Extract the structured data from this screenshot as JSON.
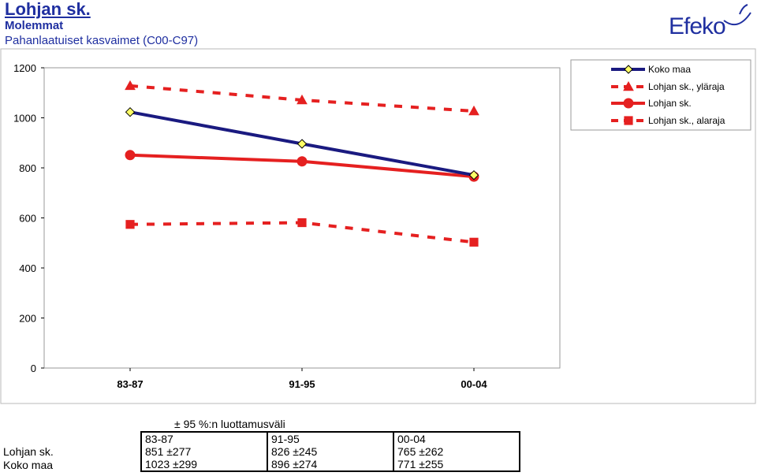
{
  "header": {
    "title": "Lohjan sk.",
    "subtitle": "Molemmat",
    "subtitle2": "Pahanlaatuiset kasvaimet (C00-C97)"
  },
  "logo": {
    "text": "Efeko"
  },
  "chart_data": {
    "type": "line",
    "categories": [
      "83-87",
      "91-95",
      "00-04"
    ],
    "ylim": [
      0,
      1200
    ],
    "yticks": [
      0,
      200,
      400,
      600,
      800,
      1000,
      1200
    ],
    "grid": false,
    "legend_position": "top-right",
    "series": [
      {
        "name": "Koko maa",
        "values": [
          1023,
          896,
          771
        ],
        "color": "#1a1a80",
        "style": "solid",
        "marker": "diamond"
      },
      {
        "name": "Lohjan sk., yläraja",
        "values": [
          1128,
          1071,
          1027
        ],
        "color": "#e52020",
        "style": "dashed",
        "marker": "triangle"
      },
      {
        "name": "Lohjan sk.",
        "values": [
          851,
          826,
          765
        ],
        "color": "#e52020",
        "style": "solid",
        "marker": "circle"
      },
      {
        "name": "Lohjan sk., alaraja",
        "values": [
          574,
          581,
          503
        ],
        "color": "#e52020",
        "style": "dashed",
        "marker": "square"
      }
    ]
  },
  "ci_table": {
    "title": "± 95 %:n luottamusväli",
    "columns": [
      "83-87",
      "91-95",
      "00-04"
    ],
    "rows": [
      {
        "label": "Lohjan sk.",
        "values": [
          "851 ±277",
          "826 ±245",
          "765 ±262"
        ]
      },
      {
        "label": "Koko maa",
        "values": [
          "1023 ±299",
          "896 ±274",
          "771 ±255"
        ]
      }
    ]
  }
}
